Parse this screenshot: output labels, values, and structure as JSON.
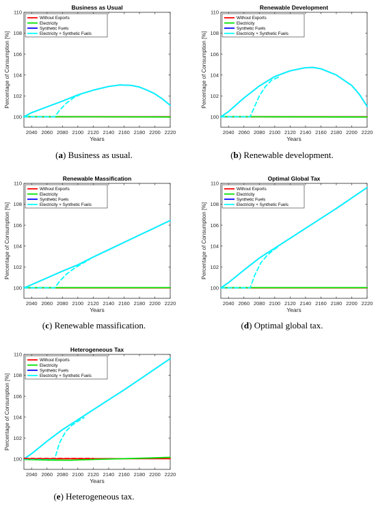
{
  "chart_data": [
    {
      "type": "line",
      "panel_letter": "a",
      "caption": "Business as usual.",
      "title": "Business as Usual",
      "xlabel": "Years",
      "ylabel": "Percentage of Consumption [%]",
      "xlim": [
        2030,
        2220
      ],
      "ylim": [
        99,
        110
      ],
      "xticks": [
        2040,
        2060,
        2080,
        2100,
        2120,
        2140,
        2160,
        2180,
        2200,
        2220
      ],
      "yticks": [
        100,
        102,
        104,
        106,
        108,
        110
      ],
      "legend": {
        "position": "top-left",
        "entries": [
          "Without Exports",
          "Electricity",
          "Synthetic Fuels",
          "Electricity + Synthetic Fuels"
        ]
      },
      "series": [
        {
          "name": "Without Exports",
          "color": "#ff0000",
          "style": "solid",
          "x": [
            2030,
            2220
          ],
          "y": [
            100,
            100
          ]
        },
        {
          "name": "Electricity",
          "color": "#00e000",
          "style": "solid",
          "x": [
            2030,
            2100,
            2220
          ],
          "y": [
            100.02,
            100.01,
            99.98
          ]
        },
        {
          "name": "Synthetic Fuels",
          "color": "#0000ff",
          "style": "solid",
          "x": [
            2030,
            2040,
            2060,
            2080,
            2100,
            2120,
            2140,
            2155,
            2170,
            2180,
            2190,
            2200,
            2210,
            2220
          ],
          "y": [
            100.0,
            100.4,
            100.95,
            101.5,
            102.1,
            102.55,
            102.9,
            103.05,
            103.0,
            102.85,
            102.55,
            102.2,
            101.7,
            101.1
          ]
        },
        {
          "name": "Electricity + Synthetic Fuels",
          "color": "#00ffff",
          "style": "solid",
          "x": [
            2030,
            2040,
            2060,
            2080,
            2100,
            2120,
            2140,
            2155,
            2170,
            2180,
            2190,
            2200,
            2210,
            2220
          ],
          "y": [
            100.0,
            100.4,
            100.95,
            101.5,
            102.1,
            102.55,
            102.9,
            103.05,
            103.0,
            102.85,
            102.55,
            102.2,
            101.7,
            101.1
          ]
        },
        {
          "color": "#00ffff",
          "style": "dashed",
          "x": [
            2030,
            2070,
            2076,
            2085,
            2095,
            2105,
            2115
          ],
          "y": [
            100,
            100,
            100.6,
            101.3,
            101.85,
            102.2,
            102.45
          ]
        }
      ]
    },
    {
      "type": "line",
      "panel_letter": "b",
      "caption": "Renewable development.",
      "title": "Renewable Development",
      "xlabel": "Years",
      "ylabel": "Percentage of Consumption [%]",
      "xlim": [
        2030,
        2220
      ],
      "ylim": [
        99,
        110
      ],
      "xticks": [
        2040,
        2060,
        2080,
        2100,
        2120,
        2140,
        2160,
        2180,
        2200,
        2220
      ],
      "yticks": [
        100,
        102,
        104,
        106,
        108,
        110
      ],
      "legend": {
        "position": "top-left",
        "entries": [
          "Without Exports",
          "Electricity",
          "Synthetic Fuels",
          "Electricity + Synthetic Fuels"
        ]
      },
      "series": [
        {
          "name": "Without Exports",
          "color": "#ff0000",
          "style": "solid",
          "x": [
            2030,
            2220
          ],
          "y": [
            100,
            100
          ]
        },
        {
          "name": "Electricity",
          "color": "#00e000",
          "style": "solid",
          "x": [
            2030,
            2100,
            2220
          ],
          "y": [
            100.02,
            100.0,
            99.98
          ]
        },
        {
          "name": "Synthetic Fuels",
          "color": "#0000ff",
          "style": "solid",
          "x": [
            2030,
            2040,
            2060,
            2080,
            2100,
            2120,
            2140,
            2150,
            2160,
            2180,
            2200,
            2210,
            2220
          ],
          "y": [
            100.0,
            100.5,
            101.8,
            102.95,
            103.85,
            104.4,
            104.7,
            104.72,
            104.6,
            104.0,
            103.0,
            102.15,
            101.0
          ]
        },
        {
          "name": "Electricity + Synthetic Fuels",
          "color": "#00ffff",
          "style": "solid",
          "x": [
            2030,
            2040,
            2060,
            2080,
            2100,
            2120,
            2140,
            2150,
            2160,
            2180,
            2200,
            2210,
            2220
          ],
          "y": [
            100.0,
            100.5,
            101.8,
            102.95,
            103.85,
            104.4,
            104.7,
            104.72,
            104.6,
            104.0,
            103.0,
            102.15,
            101.0
          ]
        },
        {
          "color": "#00ffff",
          "style": "dashed",
          "x": [
            2030,
            2068,
            2074,
            2080,
            2088,
            2096,
            2105
          ],
          "y": [
            100,
            100,
            101.0,
            102.0,
            102.9,
            103.5,
            103.8
          ]
        }
      ]
    },
    {
      "type": "line",
      "panel_letter": "c",
      "caption": "Renewable massification.",
      "title": "Renewable Massification",
      "xlabel": "Years",
      "ylabel": "Percentage of Consumption [%]",
      "xlim": [
        2030,
        2220
      ],
      "ylim": [
        99,
        110
      ],
      "xticks": [
        2040,
        2060,
        2080,
        2100,
        2120,
        2140,
        2160,
        2180,
        2200,
        2220
      ],
      "yticks": [
        100,
        102,
        104,
        106,
        108,
        110
      ],
      "legend": {
        "position": "top-left",
        "entries": [
          "Without Exports",
          "Electricity",
          "Synthetic Fuels",
          "Electricity + Synthetic Fuels"
        ]
      },
      "series": [
        {
          "name": "Without Exports",
          "color": "#ff0000",
          "style": "solid",
          "x": [
            2030,
            2220
          ],
          "y": [
            100,
            100
          ]
        },
        {
          "name": "Electricity",
          "color": "#00e000",
          "style": "solid",
          "x": [
            2030,
            2220
          ],
          "y": [
            100.02,
            100.02
          ]
        },
        {
          "name": "Synthetic Fuels",
          "color": "#0000ff",
          "style": "solid",
          "x": [
            2030,
            2040,
            2060,
            2080,
            2100,
            2120,
            2140,
            2160,
            2180,
            2200,
            2220
          ],
          "y": [
            100.0,
            100.3,
            100.95,
            101.6,
            102.2,
            102.95,
            103.65,
            104.35,
            105.05,
            105.75,
            106.45
          ]
        },
        {
          "name": "Electricity + Synthetic Fuels",
          "color": "#00ffff",
          "style": "solid",
          "x": [
            2030,
            2040,
            2060,
            2080,
            2100,
            2120,
            2140,
            2160,
            2180,
            2200,
            2220
          ],
          "y": [
            100.0,
            100.3,
            100.95,
            101.6,
            102.2,
            102.95,
            103.65,
            104.35,
            105.05,
            105.75,
            106.45
          ]
        },
        {
          "color": "#00ffff",
          "style": "dashed",
          "x": [
            2030,
            2070,
            2076,
            2085,
            2095,
            2105,
            2115
          ],
          "y": [
            100,
            100,
            100.6,
            101.3,
            101.85,
            102.3,
            102.7
          ]
        }
      ]
    },
    {
      "type": "line",
      "panel_letter": "d",
      "caption": "Optimal global tax.",
      "title": "Optimal Global Tax",
      "xlabel": "Years",
      "ylabel": "Percentage of Consumption [%]",
      "xlim": [
        2030,
        2220
      ],
      "ylim": [
        99,
        110
      ],
      "xticks": [
        2040,
        2060,
        2080,
        2100,
        2120,
        2140,
        2160,
        2180,
        2200,
        2220
      ],
      "yticks": [
        100,
        102,
        104,
        106,
        108,
        110
      ],
      "legend": {
        "position": "top-left",
        "entries": [
          "Without Exports",
          "Electricity",
          "Synthetic Fuels",
          "Electricity + Synthetic Fuels"
        ]
      },
      "series": [
        {
          "name": "Without Exports",
          "color": "#ff0000",
          "style": "solid",
          "x": [
            2030,
            2220
          ],
          "y": [
            100,
            100
          ]
        },
        {
          "name": "Electricity",
          "color": "#00e000",
          "style": "solid",
          "x": [
            2030,
            2220
          ],
          "y": [
            100.02,
            100.02
          ]
        },
        {
          "name": "Synthetic Fuels",
          "color": "#0000ff",
          "style": "solid",
          "x": [
            2030,
            2040,
            2060,
            2080,
            2100,
            2120,
            2140,
            2160,
            2180,
            2200,
            2220
          ],
          "y": [
            100.0,
            100.5,
            101.7,
            102.85,
            103.8,
            104.75,
            105.7,
            106.65,
            107.6,
            108.6,
            109.6
          ]
        },
        {
          "name": "Electricity + Synthetic Fuels",
          "color": "#00ffff",
          "style": "solid",
          "x": [
            2030,
            2040,
            2060,
            2080,
            2100,
            2120,
            2140,
            2160,
            2180,
            2200,
            2220
          ],
          "y": [
            100.0,
            100.5,
            101.7,
            102.85,
            103.8,
            104.75,
            105.7,
            106.65,
            107.6,
            108.6,
            109.6
          ]
        },
        {
          "color": "#00ffff",
          "style": "dashed",
          "x": [
            2030,
            2068,
            2074,
            2082,
            2090,
            2098,
            2106
          ],
          "y": [
            100,
            100,
            101.2,
            102.4,
            103.1,
            103.6,
            104.0
          ]
        }
      ]
    },
    {
      "type": "line",
      "panel_letter": "e",
      "caption": "Heterogeneous tax.",
      "title": "Heterogeneous Tax",
      "xlabel": "Years",
      "ylabel": "Percentage of Consumption [%]",
      "xlim": [
        2030,
        2220
      ],
      "ylim": [
        99,
        110
      ],
      "xticks": [
        2040,
        2060,
        2080,
        2100,
        2120,
        2140,
        2160,
        2180,
        2200,
        2220
      ],
      "yticks": [
        100,
        102,
        104,
        106,
        108,
        110
      ],
      "legend": {
        "position": "top-left",
        "entries": [
          "Without Exports",
          "Electricity",
          "Synthetic Fuels",
          "Electricity + Synthetic Fuels"
        ]
      },
      "series": [
        {
          "name": "Without Exports",
          "color": "#ff0000",
          "style": "solid",
          "x": [
            2030,
            2220
          ],
          "y": [
            100.02,
            100.02
          ]
        },
        {
          "name": "Electricity",
          "color": "#00e000",
          "style": "solid",
          "x": [
            2030,
            2060,
            2090,
            2120,
            2160,
            2200,
            2220
          ],
          "y": [
            99.95,
            99.9,
            99.88,
            99.95,
            100.02,
            100.1,
            100.15
          ]
        },
        {
          "name": "Synthetic Fuels",
          "color": "#0000ff",
          "style": "solid",
          "x": [
            2030,
            2040,
            2060,
            2080,
            2100,
            2120,
            2140,
            2160,
            2180,
            2200,
            2220
          ],
          "y": [
            100.0,
            100.5,
            101.7,
            102.8,
            103.75,
            104.7,
            105.65,
            106.6,
            107.6,
            108.6,
            109.6
          ]
        },
        {
          "name": "Electricity + Synthetic Fuels",
          "color": "#00ffff",
          "style": "solid",
          "x": [
            2030,
            2040,
            2060,
            2080,
            2100,
            2120,
            2140,
            2160,
            2180,
            2200,
            2220
          ],
          "y": [
            100.0,
            100.5,
            101.7,
            102.8,
            103.75,
            104.7,
            105.65,
            106.6,
            107.6,
            108.6,
            109.6
          ]
        },
        {
          "color": "#00ffff",
          "style": "dashed",
          "x": [
            2030,
            2070,
            2076,
            2084,
            2092,
            2100,
            2108
          ],
          "y": [
            100,
            100,
            101.5,
            102.6,
            103.2,
            103.6,
            103.95
          ]
        },
        {
          "color": "#ff0000",
          "style": "dashed",
          "x": [
            2030,
            2120
          ],
          "y": [
            100.05,
            100.05
          ]
        }
      ]
    }
  ]
}
